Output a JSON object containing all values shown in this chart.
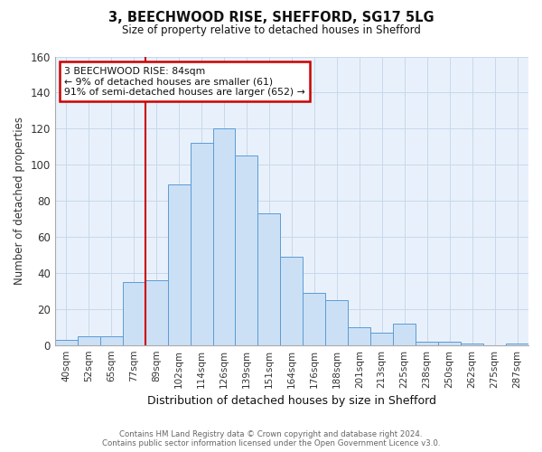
{
  "title1": "3, BEECHWOOD RISE, SHEFFORD, SG17 5LG",
  "title2": "Size of property relative to detached houses in Shefford",
  "xlabel": "Distribution of detached houses by size in Shefford",
  "ylabel": "Number of detached properties",
  "footer1": "Contains HM Land Registry data © Crown copyright and database right 2024.",
  "footer2": "Contains public sector information licensed under the Open Government Licence v3.0.",
  "bar_labels": [
    "40sqm",
    "52sqm",
    "65sqm",
    "77sqm",
    "89sqm",
    "102sqm",
    "114sqm",
    "126sqm",
    "139sqm",
    "151sqm",
    "164sqm",
    "176sqm",
    "188sqm",
    "201sqm",
    "213sqm",
    "225sqm",
    "238sqm",
    "250sqm",
    "262sqm",
    "275sqm",
    "287sqm"
  ],
  "bar_values": [
    3,
    5,
    5,
    35,
    36,
    89,
    112,
    120,
    105,
    73,
    49,
    29,
    25,
    10,
    7,
    12,
    2,
    2,
    1,
    0,
    1
  ],
  "bar_color": "#cce0f5",
  "bar_edge_color": "#5b9bd5",
  "vline_x": 4.0,
  "vline_color": "#cc0000",
  "annotation_text": "3 BEECHWOOD RISE: 84sqm\n← 9% of detached houses are smaller (61)\n91% of semi-detached houses are larger (652) →",
  "annotation_box_color": "#ffffff",
  "annotation_box_edge_color": "#cc0000",
  "ylim": [
    0,
    160
  ],
  "yticks": [
    0,
    20,
    40,
    60,
    80,
    100,
    120,
    140,
    160
  ],
  "grid_color": "#c8d8eb",
  "bg_color": "#e8f1fb"
}
